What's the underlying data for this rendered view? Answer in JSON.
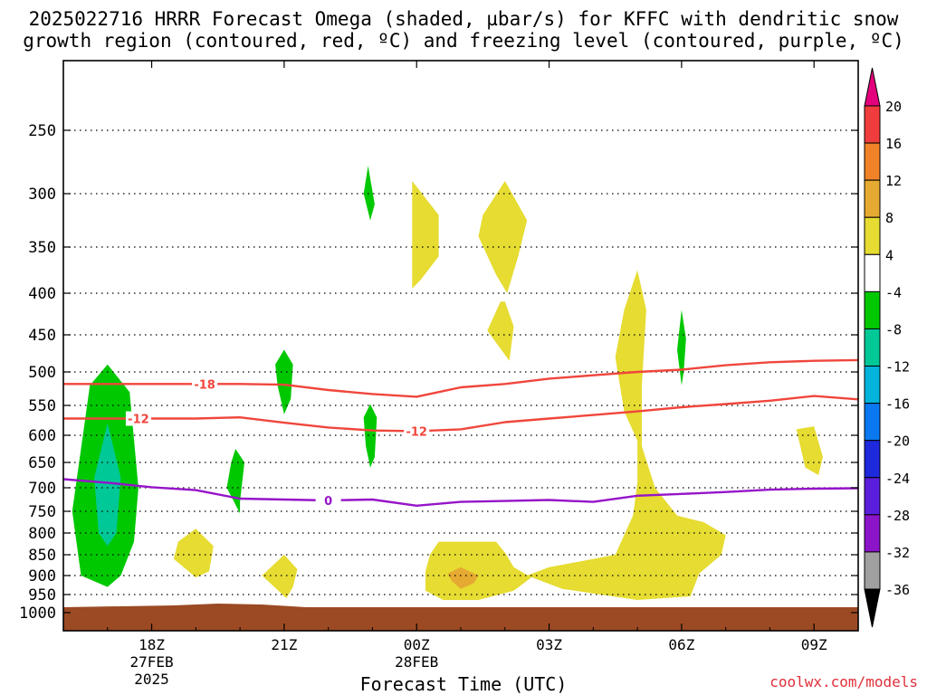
{
  "title_line1": "2025022716 HRRR Forecast Omega (shaded, µbar/s) for KFFC with dendritic snow",
  "title_line2": "growth region (contoured, red, ºC) and freezing level (contoured, purple, ºC)",
  "xaxis_label": "Forecast Time (UTC)",
  "credit": "coolwx.com/models",
  "chart_data": {
    "type": "heatmap",
    "title": "2025022716 HRRR Forecast Omega (shaded, µbar/s) for KFFC with dendritic snow growth region (contoured, red, ºC) and freezing level (contoured, purple, ºC)",
    "xlabel": "Forecast Time (UTC)",
    "ylabel": "",
    "x_range_hours": [
      16,
      34
    ],
    "y_range_hPa": [
      1000,
      200
    ],
    "x_ticks": [
      {
        "hour": 18,
        "label": "18Z",
        "date": "27FEB",
        "year": "2025"
      },
      {
        "hour": 21,
        "label": "21Z",
        "date": "",
        "year": ""
      },
      {
        "hour": 24,
        "label": "00Z",
        "date": "28FEB",
        "year": ""
      },
      {
        "hour": 27,
        "label": "03Z",
        "date": "",
        "year": ""
      },
      {
        "hour": 30,
        "label": "06Z",
        "date": "",
        "year": ""
      },
      {
        "hour": 33,
        "label": "09Z",
        "date": "",
        "year": ""
      }
    ],
    "y_ticks": [
      250,
      300,
      350,
      400,
      450,
      500,
      550,
      600,
      650,
      700,
      750,
      800,
      850,
      900,
      950,
      1000
    ],
    "grid": true,
    "colorbar": {
      "labels": [
        "20",
        "16",
        "12",
        "8",
        "4",
        "-4",
        "-8",
        "-12",
        "-16",
        "-20",
        "-24",
        "-28",
        "-32",
        "-36"
      ],
      "colors": [
        "#e4007c",
        "#f03c3c",
        "#f08228",
        "#e6aa32",
        "#e6dc32",
        "#ffffff",
        "#00c800",
        "#00c896",
        "#00b4dc",
        "#0a78f0",
        "#1e28dc",
        "#5a1edc",
        "#8c14c8",
        "#a0a0a0",
        "#000000"
      ]
    },
    "omega_regions": [
      {
        "range": "-8 to -4",
        "color": "#00c800",
        "points": [
          [
            16.4,
            900
          ],
          [
            16.2,
            750
          ],
          [
            16.6,
            520
          ],
          [
            17.0,
            490
          ],
          [
            17.5,
            530
          ],
          [
            17.7,
            700
          ],
          [
            17.6,
            820
          ],
          [
            17.3,
            900
          ],
          [
            17.0,
            930
          ]
        ]
      },
      {
        "range": "-12 to -8",
        "color": "#00c896",
        "points": [
          [
            16.8,
            800
          ],
          [
            16.7,
            680
          ],
          [
            17.0,
            580
          ],
          [
            17.3,
            680
          ],
          [
            17.2,
            800
          ],
          [
            17.0,
            830
          ]
        ]
      },
      {
        "range": "-8 to -4",
        "color": "#00c800",
        "points": [
          [
            21.0,
            470
          ],
          [
            21.2,
            490
          ],
          [
            21.15,
            540
          ],
          [
            21.0,
            565
          ],
          [
            20.85,
            520
          ],
          [
            20.8,
            490
          ]
        ]
      },
      {
        "range": "-8 to -4",
        "color": "#00c800",
        "points": [
          [
            19.9,
            625
          ],
          [
            20.1,
            650
          ],
          [
            20.0,
            730
          ],
          [
            20.0,
            755
          ],
          [
            19.7,
            700
          ],
          [
            19.8,
            650
          ]
        ]
      },
      {
        "range": "-8 to -4",
        "color": "#00c800",
        "points": [
          [
            22.9,
            278
          ],
          [
            23.05,
            310
          ],
          [
            22.95,
            325
          ],
          [
            22.8,
            300
          ]
        ]
      },
      {
        "range": "-8 to -4",
        "color": "#00c800",
        "points": [
          [
            22.95,
            548
          ],
          [
            23.1,
            570
          ],
          [
            23.05,
            640
          ],
          [
            22.95,
            660
          ],
          [
            22.85,
            620
          ],
          [
            22.8,
            570
          ]
        ]
      },
      {
        "range": "-8 to -4",
        "color": "#00c800",
        "points": [
          [
            30.0,
            420
          ],
          [
            30.1,
            455
          ],
          [
            30.05,
            500
          ],
          [
            30.0,
            520
          ],
          [
            29.9,
            470
          ]
        ]
      },
      {
        "range": "4 to 8",
        "color": "#e6dc32",
        "points": [
          [
            23.9,
            290
          ],
          [
            24.5,
            320
          ],
          [
            24.5,
            360
          ],
          [
            24.1,
            385
          ],
          [
            23.9,
            395
          ]
        ]
      },
      {
        "range": "4 to 8",
        "color": "#e6dc32",
        "points": [
          [
            26.0,
            290
          ],
          [
            26.5,
            325
          ],
          [
            26.3,
            360
          ],
          [
            26.05,
            400
          ],
          [
            25.8,
            380
          ],
          [
            25.4,
            340
          ],
          [
            25.5,
            320
          ]
        ]
      },
      {
        "range": "4 to 8",
        "color": "#e6dc32",
        "points": [
          [
            26.0,
            410
          ],
          [
            26.2,
            440
          ],
          [
            26.1,
            485
          ],
          [
            25.6,
            445
          ],
          [
            25.9,
            410
          ]
        ]
      },
      {
        "range": "4 to 8",
        "color": "#e6dc32",
        "points": [
          [
            29.0,
            375
          ],
          [
            29.2,
            420
          ],
          [
            29.1,
            520
          ],
          [
            29.1,
            620
          ],
          [
            29.4,
            700
          ],
          [
            29.9,
            760
          ],
          [
            30.5,
            775
          ],
          [
            31.0,
            805
          ],
          [
            30.9,
            850
          ],
          [
            30.4,
            895
          ],
          [
            30.2,
            955
          ],
          [
            29.0,
            965
          ],
          [
            27.3,
            935
          ],
          [
            26.5,
            900
          ],
          [
            27.0,
            880
          ],
          [
            28.5,
            850
          ],
          [
            28.9,
            760
          ],
          [
            29.0,
            690
          ],
          [
            29.0,
            610
          ],
          [
            28.7,
            560
          ],
          [
            28.5,
            480
          ],
          [
            28.7,
            420
          ]
        ]
      },
      {
        "range": "4 to 8",
        "color": "#e6dc32",
        "points": [
          [
            24.5,
            820
          ],
          [
            25.8,
            820
          ],
          [
            26.0,
            845
          ],
          [
            26.2,
            880
          ],
          [
            26.6,
            905
          ],
          [
            26.2,
            940
          ],
          [
            25.4,
            965
          ],
          [
            24.6,
            965
          ],
          [
            24.2,
            940
          ],
          [
            24.2,
            890
          ],
          [
            24.3,
            850
          ]
        ]
      },
      {
        "range": "8 to 12",
        "color": "#e6aa32",
        "points": [
          [
            25.0,
            880
          ],
          [
            25.4,
            900
          ],
          [
            25.3,
            920
          ],
          [
            25.0,
            935
          ],
          [
            24.8,
            915
          ],
          [
            24.7,
            895
          ]
        ]
      },
      {
        "range": "4 to 8",
        "color": "#e6dc32",
        "points": [
          [
            19.0,
            790
          ],
          [
            19.4,
            830
          ],
          [
            19.3,
            890
          ],
          [
            19.0,
            905
          ],
          [
            18.5,
            860
          ],
          [
            18.6,
            820
          ]
        ]
      },
      {
        "range": "4 to 8",
        "color": "#e6dc32",
        "points": [
          [
            21.0,
            850
          ],
          [
            21.3,
            885
          ],
          [
            21.2,
            930
          ],
          [
            21.05,
            960
          ],
          [
            20.5,
            900
          ]
        ]
      },
      {
        "range": "4 to 8",
        "color": "#e6dc32",
        "points": [
          [
            33.0,
            585
          ],
          [
            33.2,
            640
          ],
          [
            33.1,
            675
          ],
          [
            32.8,
            660
          ],
          [
            32.6,
            590
          ]
        ]
      }
    ],
    "contours": [
      {
        "name": "-18",
        "color": "#f0463c",
        "label": "-18",
        "label_at": 19.2,
        "points": [
          [
            16,
            518
          ],
          [
            18,
            518
          ],
          [
            20,
            518
          ],
          [
            21,
            519
          ],
          [
            22,
            527
          ],
          [
            23,
            533
          ],
          [
            24,
            537
          ],
          [
            25,
            523
          ],
          [
            26,
            518
          ],
          [
            27,
            510
          ],
          [
            28,
            505
          ],
          [
            29,
            500
          ],
          [
            30,
            497
          ],
          [
            31,
            491
          ],
          [
            32,
            487
          ],
          [
            33,
            485
          ],
          [
            34,
            484
          ]
        ]
      },
      {
        "name": "-12",
        "color": "#f0463c",
        "label": "-12",
        "label_at": 17.7,
        "points": [
          [
            16,
            572
          ],
          [
            18,
            572
          ],
          [
            19,
            572
          ],
          [
            20,
            570
          ],
          [
            21,
            579
          ],
          [
            22,
            587
          ],
          [
            23,
            592
          ],
          [
            24,
            593
          ],
          [
            25,
            590
          ],
          [
            26,
            578
          ],
          [
            27,
            572
          ],
          [
            28,
            566
          ],
          [
            29,
            560
          ],
          [
            30,
            553
          ],
          [
            31,
            548
          ],
          [
            32,
            543
          ],
          [
            33,
            536
          ],
          [
            34,
            541
          ]
        ]
      },
      {
        "name": "0",
        "color": "#9614c8",
        "label": "0",
        "label_at": 22.0,
        "points": [
          [
            16,
            683
          ],
          [
            17,
            690
          ],
          [
            18,
            699
          ],
          [
            19,
            705
          ],
          [
            20,
            723
          ],
          [
            21,
            725
          ],
          [
            22,
            727
          ],
          [
            23,
            725
          ],
          [
            24,
            738
          ],
          [
            25,
            730
          ],
          [
            26,
            728
          ],
          [
            27,
            726
          ],
          [
            28,
            730
          ],
          [
            29,
            717
          ],
          [
            30,
            713
          ],
          [
            31,
            709
          ],
          [
            32,
            704
          ],
          [
            33,
            702
          ],
          [
            34,
            701
          ]
        ]
      }
    ],
    "terrain_color": "#9b4a23"
  }
}
